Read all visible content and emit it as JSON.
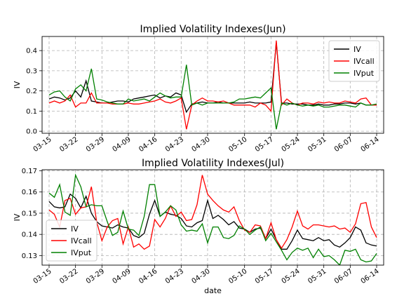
{
  "chart_data": [
    {
      "type": "line",
      "title": "Implied Volatility Indexes(Jun)",
      "xlabel": "",
      "ylabel": "IV",
      "ylim": [
        -0.01,
        0.47
      ],
      "yticks": [
        "0.0",
        "0.1",
        "0.2",
        "0.3",
        "0.4"
      ],
      "grid": true,
      "legend": "top-right",
      "x": [
        "03-15",
        "03-16",
        "03-19",
        "03-20",
        "03-21",
        "03-22",
        "03-23",
        "03-26",
        "03-27",
        "03-28",
        "03-29",
        "03-30",
        "04-02",
        "04-03",
        "04-04",
        "04-09",
        "04-10",
        "04-11",
        "04-12",
        "04-13",
        "04-16",
        "04-17",
        "04-18",
        "04-19",
        "04-20",
        "04-23",
        "04-24",
        "04-25",
        "04-26",
        "04-27",
        "04-30",
        "05-02",
        "05-03",
        "05-04",
        "05-07",
        "05-08",
        "05-09",
        "05-10",
        "05-11",
        "05-14",
        "05-15",
        "05-16",
        "05-17",
        "05-18",
        "05-21",
        "05-22",
        "05-23",
        "05-24",
        "05-25",
        "05-28",
        "05-29",
        "05-30",
        "05-31",
        "06-01",
        "06-04",
        "06-05",
        "06-06",
        "06-07",
        "06-08",
        "06-11",
        "06-12",
        "06-13",
        "06-14"
      ],
      "xtick_labels": [
        "03-15",
        "03-22",
        "03-29",
        "04-09",
        "04-16",
        "04-23",
        "04-30",
        "05-10",
        "05-17",
        "05-24",
        "05-31",
        "06-07",
        "06-14"
      ],
      "series": [
        {
          "name": "IV",
          "color": "#000000",
          "values": [
            0.16,
            0.17,
            0.165,
            0.155,
            0.165,
            0.2,
            0.17,
            0.25,
            0.15,
            0.145,
            0.14,
            0.14,
            0.145,
            0.15,
            0.15,
            0.145,
            0.16,
            0.165,
            0.17,
            0.175,
            0.18,
            0.165,
            0.175,
            0.17,
            0.19,
            0.18,
            0.095,
            0.135,
            0.14,
            0.145,
            0.14,
            0.14,
            0.145,
            0.14,
            0.14,
            0.14,
            0.14,
            0.14,
            0.145,
            0.14,
            0.14,
            0.14,
            0.145,
            0.44,
            0.14,
            0.14,
            0.135,
            0.135,
            0.135,
            0.13,
            0.13,
            0.135,
            0.13,
            0.13,
            0.135,
            0.135,
            0.14,
            0.14,
            0.135,
            0.14,
            0.13,
            0.13,
            0.13
          ]
        },
        {
          "name": "IVcall",
          "color": "#ff0000",
          "values": [
            0.14,
            0.15,
            0.14,
            0.15,
            0.18,
            0.12,
            0.14,
            0.14,
            0.19,
            0.14,
            0.14,
            0.14,
            0.135,
            0.135,
            0.135,
            0.14,
            0.135,
            0.135,
            0.14,
            0.145,
            0.15,
            0.16,
            0.145,
            0.14,
            0.15,
            0.165,
            0.01,
            0.13,
            0.15,
            0.165,
            0.15,
            0.15,
            0.145,
            0.15,
            0.14,
            0.13,
            0.13,
            0.13,
            0.13,
            0.12,
            0.14,
            0.13,
            0.1,
            0.45,
            0.13,
            0.16,
            0.14,
            0.13,
            0.14,
            0.14,
            0.135,
            0.145,
            0.14,
            0.145,
            0.14,
            0.14,
            0.15,
            0.145,
            0.14,
            0.16,
            0.165,
            0.13,
            0.13
          ]
        },
        {
          "name": "IVput",
          "color": "#008000",
          "values": [
            0.18,
            0.195,
            0.2,
            0.17,
            0.15,
            0.21,
            0.23,
            0.2,
            0.31,
            0.16,
            0.155,
            0.145,
            0.14,
            0.135,
            0.135,
            0.16,
            0.15,
            0.155,
            0.16,
            0.15,
            0.17,
            0.19,
            0.175,
            0.165,
            0.17,
            0.17,
            0.33,
            0.13,
            0.14,
            0.13,
            0.14,
            0.14,
            0.14,
            0.14,
            0.14,
            0.145,
            0.16,
            0.16,
            0.165,
            0.17,
            0.165,
            0.19,
            0.215,
            0.01,
            0.14,
            0.13,
            0.14,
            0.13,
            0.125,
            0.13,
            0.125,
            0.13,
            0.12,
            0.12,
            0.125,
            0.13,
            0.13,
            0.125,
            0.12,
            0.14,
            0.13,
            0.13,
            0.135
          ]
        }
      ]
    },
    {
      "type": "line",
      "title": "Implied Volatility Indexes(Jul)",
      "xlabel": "date",
      "ylabel": "IV",
      "ylim": [
        0.1255,
        0.1705
      ],
      "yticks": [
        "0.13",
        "0.14",
        "0.15",
        "0.16",
        "0.17"
      ],
      "grid": true,
      "legend": "bottom-left",
      "x": [
        "03-15",
        "03-16",
        "03-19",
        "03-20",
        "03-21",
        "03-22",
        "03-23",
        "03-26",
        "03-27",
        "03-28",
        "03-29",
        "03-30",
        "04-02",
        "04-03",
        "04-04",
        "04-09",
        "04-10",
        "04-11",
        "04-12",
        "04-13",
        "04-16",
        "04-17",
        "04-18",
        "04-19",
        "04-20",
        "04-23",
        "04-24",
        "04-25",
        "04-26",
        "04-27",
        "04-30",
        "05-02",
        "05-03",
        "05-04",
        "05-07",
        "05-08",
        "05-09",
        "05-10",
        "05-11",
        "05-14",
        "05-15",
        "05-16",
        "05-17",
        "05-18",
        "05-21",
        "05-22",
        "05-23",
        "05-24",
        "05-25",
        "05-28",
        "05-29",
        "05-30",
        "05-31",
        "06-01",
        "06-04",
        "06-05",
        "06-06",
        "06-07",
        "06-08",
        "06-11",
        "06-12",
        "06-13",
        "06-14"
      ],
      "xtick_labels": [
        "03-15",
        "03-22",
        "03-29",
        "04-09",
        "04-16",
        "04-23",
        "04-30",
        "05-10",
        "05-17",
        "05-24",
        "05-31",
        "06-07",
        "06-14"
      ],
      "series": [
        {
          "name": "IV",
          "color": "#000000",
          "values": [
            0.1555,
            0.153,
            0.1525,
            0.153,
            0.159,
            0.157,
            0.1525,
            0.158,
            0.15,
            0.146,
            0.144,
            0.1435,
            0.143,
            0.1445,
            0.1435,
            0.143,
            0.1395,
            0.1385,
            0.1405,
            0.1495,
            0.156,
            0.1485,
            0.1505,
            0.1495,
            0.149,
            0.1475,
            0.144,
            0.1435,
            0.1455,
            0.1465,
            0.156,
            0.1475,
            0.149,
            0.147,
            0.1445,
            0.146,
            0.143,
            0.1425,
            0.141,
            0.1425,
            0.143,
            0.138,
            0.1425,
            0.1375,
            0.133,
            0.133,
            0.137,
            0.142,
            0.138,
            0.1375,
            0.137,
            0.1385,
            0.137,
            0.1375,
            0.135,
            0.134,
            0.136,
            0.1385,
            0.1435,
            0.142,
            0.136,
            0.135,
            0.1345
          ]
        },
        {
          "name": "IVcall",
          "color": "#ff0000",
          "values": [
            0.1515,
            0.1495,
            0.1435,
            0.156,
            0.157,
            0.1495,
            0.1525,
            0.153,
            0.1625,
            0.146,
            0.137,
            0.1435,
            0.1465,
            0.1475,
            0.1355,
            0.1435,
            0.134,
            0.1355,
            0.133,
            0.1345,
            0.147,
            0.1435,
            0.1475,
            0.1535,
            0.1485,
            0.1505,
            0.1465,
            0.147,
            0.154,
            0.168,
            0.159,
            0.156,
            0.1535,
            0.1515,
            0.1505,
            0.153,
            0.1465,
            0.142,
            0.141,
            0.1445,
            0.144,
            0.138,
            0.1455,
            0.1375,
            0.1335,
            0.1375,
            0.1435,
            0.151,
            0.144,
            0.1425,
            0.1445,
            0.1445,
            0.144,
            0.1435,
            0.144,
            0.1425,
            0.143,
            0.141,
            0.145,
            0.1545,
            0.155,
            0.1435,
            0.1385
          ]
        },
        {
          "name": "IVput",
          "color": "#008000",
          "values": [
            0.1595,
            0.1575,
            0.1635,
            0.1505,
            0.149,
            0.168,
            0.1625,
            0.153,
            0.154,
            0.1535,
            0.1535,
            0.146,
            0.1395,
            0.141,
            0.151,
            0.1425,
            0.142,
            0.1395,
            0.1485,
            0.1635,
            0.1635,
            0.1485,
            0.1505,
            0.1535,
            0.1515,
            0.1445,
            0.1415,
            0.142,
            0.1415,
            0.145,
            0.136,
            0.1435,
            0.1435,
            0.1385,
            0.138,
            0.1395,
            0.144,
            0.1425,
            0.14,
            0.142,
            0.1435,
            0.137,
            0.1405,
            0.1365,
            0.1325,
            0.128,
            0.1315,
            0.1335,
            0.1325,
            0.1335,
            0.129,
            0.133,
            0.1295,
            0.13,
            0.128,
            0.1255,
            0.1325,
            0.132,
            0.133,
            0.128,
            0.127,
            0.1275,
            0.131
          ]
        }
      ]
    }
  ]
}
